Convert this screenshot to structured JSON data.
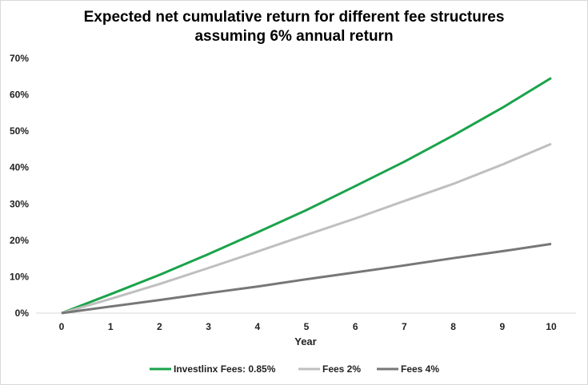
{
  "chart_data": {
    "type": "line",
    "title_line1": "Expected net cumulative return for different fee structures",
    "title_line2": "assuming 6% annual return",
    "xlabel": "Year",
    "ylabel": "",
    "x": [
      0,
      1,
      2,
      3,
      4,
      5,
      6,
      7,
      8,
      9,
      10
    ],
    "xlim": [
      0,
      10
    ],
    "ylim": [
      0,
      70
    ],
    "y_ticks": [
      "0%",
      "10%",
      "20%",
      "30%",
      "40%",
      "50%",
      "60%",
      "70%"
    ],
    "y_tick_values": [
      0,
      10,
      20,
      30,
      40,
      50,
      60,
      70
    ],
    "grid": false,
    "legend_position": "bottom",
    "series": [
      {
        "name": "Investlinx Fees: 0.85%",
        "color": "#1aa34a",
        "values": [
          0,
          5.2,
          10.5,
          16.2,
          22.2,
          28.3,
          34.9,
          41.6,
          48.8,
          56.4,
          64.6
        ]
      },
      {
        "name": "Fees 2%",
        "color": "#bfbfbf",
        "values": [
          0,
          3.9,
          8.0,
          12.4,
          16.9,
          21.5,
          26.0,
          30.8,
          35.5,
          40.8,
          46.5
        ]
      },
      {
        "name": "Fees 4%",
        "color": "#777777",
        "values": [
          0,
          1.8,
          3.6,
          5.5,
          7.3,
          9.3,
          11.2,
          13.1,
          15.1,
          17.0,
          19.0
        ]
      }
    ]
  }
}
